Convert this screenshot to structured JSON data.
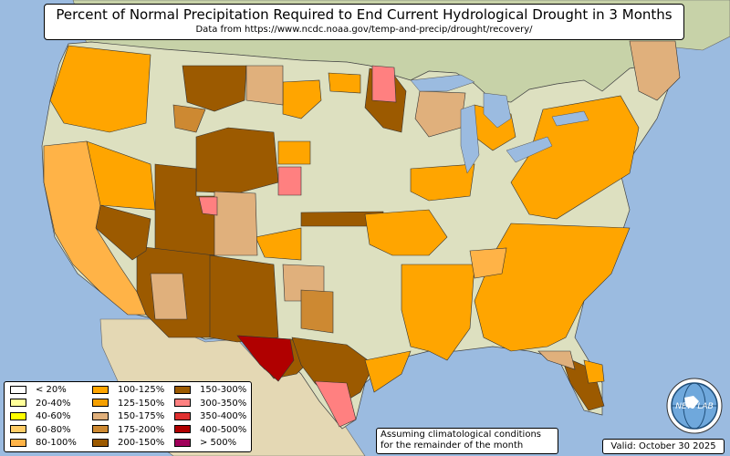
{
  "title": {
    "main": "Percent of Normal Precipitation Required to End Current Hydrological Drought in 3 Months",
    "source": "Data from https://www.ncdc.noaa.gov/temp-and-precip/drought/recovery/"
  },
  "legend": [
    {
      "label": "< 20%",
      "color": "#ffffff"
    },
    {
      "label": "20-40%",
      "color": "#ffff99"
    },
    {
      "label": "40-60%",
      "color": "#ffff00"
    },
    {
      "label": "60-80%",
      "color": "#ffcc66"
    },
    {
      "label": "80-100%",
      "color": "#ffb347"
    },
    {
      "label": "100-125%",
      "color": "#ffa500"
    },
    {
      "label": "125-150%",
      "color": "#f5a000"
    },
    {
      "label": "150-175%",
      "color": "#e0b07c"
    },
    {
      "label": "175-200%",
      "color": "#cd8932"
    },
    {
      "label": "200-150%",
      "color": "#9c5a00"
    },
    {
      "label": "150-300%",
      "color": "#9c5a00"
    },
    {
      "label": "300-350%",
      "color": "#ff8080"
    },
    {
      "label": "350-400%",
      "color": "#e03030"
    },
    {
      "label": "400-500%",
      "color": "#b00000"
    },
    {
      "label": "> 500%",
      "color": "#a0005a"
    }
  ],
  "note": {
    "line1": "Assuming climatological conditions",
    "line2": "for the remainder of the month"
  },
  "valid": "Valid: October 30 2025",
  "logo": {
    "text": "NEW LAB",
    "name": "lab-globe-logo"
  },
  "colors": {
    "ocean": "#9bbbe0",
    "land": "#dfe3c8",
    "canada": "#c9d4b0",
    "mexico": "#e6dcc0",
    "lakes": "#9bbbe0"
  }
}
